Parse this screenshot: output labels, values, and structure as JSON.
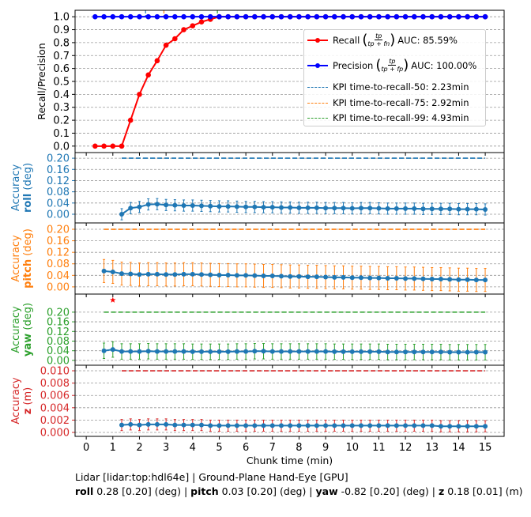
{
  "chart_data": [
    {
      "type": "line",
      "panel": "recall-precision",
      "ylabel": "Recall/Precision",
      "ylim": [
        -0.05,
        1.05
      ],
      "yticks": [
        "0.0",
        "0.1",
        "0.2",
        "0.3",
        "0.4",
        "0.5",
        "0.6",
        "0.7",
        "0.8",
        "0.9",
        "1.0"
      ],
      "x_step": 0.3333,
      "series": [
        {
          "name": "Recall",
          "color": "#ff0000",
          "x_start_index": 1,
          "values": [
            0,
            0,
            0,
            0,
            0.2,
            0.4,
            0.55,
            0.66,
            0.78,
            0.83,
            0.9,
            0.93,
            0.96,
            0.98,
            1.0,
            1,
            1,
            1,
            1,
            1,
            1,
            1,
            1,
            1,
            1,
            1,
            1,
            1,
            1,
            1,
            1,
            1,
            1,
            1,
            1,
            1,
            1,
            1,
            1,
            1,
            1,
            1,
            1,
            1,
            1
          ]
        },
        {
          "name": "Precision",
          "color": "#0000ff",
          "x_start_index": 1,
          "values": [
            1,
            1,
            1,
            1,
            1,
            1,
            1,
            1,
            1,
            1,
            1,
            1,
            1,
            1,
            1,
            1,
            1,
            1,
            1,
            1,
            1,
            1,
            1,
            1,
            1,
            1,
            1,
            1,
            1,
            1,
            1,
            1,
            1,
            1,
            1,
            1,
            1,
            1,
            1,
            1,
            1,
            1,
            1,
            1,
            1
          ]
        }
      ],
      "vlines": [
        {
          "x": 2.23,
          "color": "#1f77b4"
        },
        {
          "x": 2.92,
          "color": "#ff7f0e"
        },
        {
          "x": 4.93,
          "color": "#2ca02c"
        }
      ],
      "legend": {
        "placement": "center-right",
        "recall_label": "Recall",
        "recall_num": "tp",
        "recall_den": "tp + fn",
        "recall_auc": "AUC: 85.59%",
        "precision_label": "Precision",
        "precision_num": "tp",
        "precision_den": "tp + fp",
        "precision_auc": "AUC: 100.00%",
        "kpi50": "KPI time-to-recall-50: 2.23min",
        "kpi75": "KPI time-to-recall-75: 2.92min",
        "kpi99": "KPI time-to-recall-99: 4.93min"
      }
    },
    {
      "type": "line",
      "panel": "roll",
      "color": "#1f77b4",
      "ylabel_top": "Accuracy",
      "ylabel_bold": "roll",
      "ylabel_unit": " (deg)",
      "ylim": [
        -0.031,
        0.22
      ],
      "yticks": [
        "0.00",
        "0.04",
        "0.08",
        "0.12",
        "0.16",
        "0.20"
      ],
      "threshold": 0.2,
      "x_start_index": 4,
      "yerr": 0.02,
      "values": [
        0.0,
        0.022,
        0.026,
        0.035,
        0.036,
        0.033,
        0.032,
        0.031,
        0.031,
        0.03,
        0.029,
        0.028,
        0.028,
        0.027,
        0.026,
        0.026,
        0.025,
        0.025,
        0.024,
        0.024,
        0.023,
        0.023,
        0.023,
        0.022,
        0.022,
        0.022,
        0.021,
        0.022,
        0.022,
        0.021,
        0.02,
        0.02,
        0.02,
        0.02,
        0.019,
        0.019,
        0.019,
        0.019,
        0.018,
        0.018,
        0.018,
        0.017
      ]
    },
    {
      "type": "line",
      "panel": "pitch",
      "color": "#ff7f0e",
      "ylabel_top": "Accuracy",
      "ylabel_bold": "pitch",
      "ylabel_unit": " (deg)",
      "ylim": [
        -0.025,
        0.222
      ],
      "yticks": [
        "0.00",
        "0.04",
        "0.08",
        "0.12",
        "0.16",
        "0.20"
      ],
      "threshold": 0.2,
      "x_start_index": 2,
      "yerr": 0.04,
      "values": [
        0.055,
        0.052,
        0.046,
        0.045,
        0.043,
        0.044,
        0.044,
        0.043,
        0.043,
        0.044,
        0.044,
        0.043,
        0.042,
        0.041,
        0.041,
        0.04,
        0.04,
        0.039,
        0.038,
        0.038,
        0.037,
        0.036,
        0.036,
        0.035,
        0.035,
        0.034,
        0.033,
        0.033,
        0.032,
        0.032,
        0.031,
        0.031,
        0.03,
        0.03,
        0.029,
        0.029,
        0.028,
        0.027,
        0.027,
        0.026,
        0.025,
        0.025,
        0.024,
        0.024
      ]
    },
    {
      "type": "line",
      "panel": "yaw",
      "color": "#2ca02c",
      "ylabel_top": "Accuracy",
      "ylabel_bold": "yaw",
      "ylabel_unit": " (deg)",
      "ylim": [
        -0.02,
        0.275
      ],
      "yticks": [
        "0.00",
        "0.04",
        "0.08",
        "0.12",
        "0.16",
        "0.20"
      ],
      "threshold": 0.2,
      "x_start_index": 2,
      "yerr": 0.032,
      "marker": {
        "x": 1.0,
        "y": 0.25,
        "color": "#ff0000",
        "shape": "star"
      },
      "values": [
        0.04,
        0.045,
        0.037,
        0.037,
        0.037,
        0.038,
        0.037,
        0.037,
        0.037,
        0.037,
        0.036,
        0.036,
        0.036,
        0.036,
        0.036,
        0.037,
        0.037,
        0.038,
        0.038,
        0.037,
        0.037,
        0.037,
        0.037,
        0.037,
        0.037,
        0.037,
        0.036,
        0.036,
        0.036,
        0.036,
        0.036,
        0.036,
        0.035,
        0.035,
        0.035,
        0.035,
        0.035,
        0.035,
        0.035,
        0.034,
        0.034,
        0.034,
        0.034,
        0.034
      ]
    },
    {
      "type": "line",
      "panel": "z",
      "color": "#d62728",
      "ylabel_top": "Accuracy",
      "ylabel_bold": "z",
      "ylabel_unit": " (m)",
      "ylim": [
        -0.00064,
        0.0109
      ],
      "yticks": [
        "0.000",
        "0.002",
        "0.004",
        "0.006",
        "0.008",
        "0.010"
      ],
      "threshold": 0.01,
      "x_start_index": 4,
      "yerr": 0.0009,
      "values": [
        0.0012,
        0.0013,
        0.0012,
        0.0013,
        0.0013,
        0.0013,
        0.0012,
        0.0012,
        0.0012,
        0.0012,
        0.0011,
        0.0011,
        0.0011,
        0.0011,
        0.0011,
        0.0011,
        0.0011,
        0.0011,
        0.0011,
        0.0011,
        0.0011,
        0.0011,
        0.0011,
        0.0011,
        0.0011,
        0.0011,
        0.0011,
        0.0011,
        0.0011,
        0.0011,
        0.0011,
        0.0011,
        0.0011,
        0.0011,
        0.0011,
        0.0011,
        0.001,
        0.001,
        0.001,
        0.001,
        0.001,
        0.001
      ]
    }
  ],
  "xaxis": {
    "label": "Chunk time (min)",
    "xlim": [
      -0.42,
      15.71
    ],
    "ticks": [
      "0",
      "1",
      "2",
      "3",
      "4",
      "5",
      "6",
      "7",
      "8",
      "9",
      "10",
      "11",
      "12",
      "13",
      "14",
      "15"
    ]
  },
  "caption": {
    "line1": "Lidar [lidar:top:hdl64e] | Ground-Plane Hand-Eye [GPU]",
    "roll_label": "roll",
    "roll_value": " 0.28 [0.20] (deg) | ",
    "pitch_label": "pitch",
    "pitch_value": " 0.03 [0.20] (deg) | ",
    "yaw_label": "yaw",
    "yaw_value": " -0.82 [0.20] (deg) | ",
    "z_label": "z",
    "z_value": " 0.18 [0.01] (m)"
  }
}
